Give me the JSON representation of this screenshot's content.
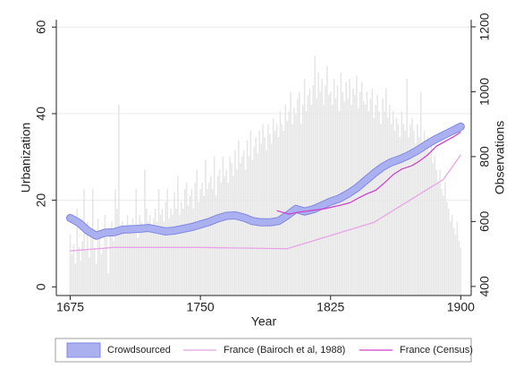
{
  "chart_data": {
    "type": "line",
    "xlabel": "Year",
    "ylabel": "Urbanization",
    "y2label": "Observations",
    "xlim": [
      1667,
      1906
    ],
    "xticks": [
      1675,
      1750,
      1825,
      1900
    ],
    "ylim": [
      -2,
      61.7
    ],
    "yticks": [
      0,
      20,
      40,
      60
    ],
    "y2lim": [
      372,
      1222
    ],
    "y2ticks": [
      400,
      600,
      800,
      1000,
      1200
    ],
    "grid": true,
    "legend": "bottom",
    "series": [
      {
        "type": "bar",
        "axis": "y2",
        "color": "#e6e6e6",
        "x": [
          1675,
          1676,
          1677,
          1678,
          1679,
          1680,
          1681,
          1682,
          1683,
          1684,
          1685,
          1686,
          1687,
          1688,
          1689,
          1690,
          1691,
          1692,
          1693,
          1694,
          1695,
          1696,
          1697,
          1698,
          1699,
          1700,
          1701,
          1702,
          1703,
          1704,
          1705,
          1706,
          1707,
          1708,
          1709,
          1710,
          1711,
          1712,
          1713,
          1714,
          1715,
          1716,
          1717,
          1718,
          1719,
          1720,
          1721,
          1722,
          1723,
          1724,
          1725,
          1726,
          1727,
          1728,
          1729,
          1730,
          1731,
          1732,
          1733,
          1734,
          1735,
          1736,
          1737,
          1738,
          1739,
          1740,
          1741,
          1742,
          1743,
          1744,
          1745,
          1746,
          1747,
          1748,
          1749,
          1750,
          1751,
          1752,
          1753,
          1754,
          1755,
          1756,
          1757,
          1758,
          1759,
          1760,
          1761,
          1762,
          1763,
          1764,
          1765,
          1766,
          1767,
          1768,
          1769,
          1770,
          1771,
          1772,
          1773,
          1774,
          1775,
          1776,
          1777,
          1778,
          1779,
          1780,
          1781,
          1782,
          1783,
          1784,
          1785,
          1786,
          1787,
          1788,
          1789,
          1790,
          1791,
          1792,
          1793,
          1794,
          1795,
          1796,
          1797,
          1798,
          1799,
          1800,
          1801,
          1802,
          1803,
          1804,
          1805,
          1806,
          1807,
          1808,
          1809,
          1810,
          1811,
          1812,
          1813,
          1814,
          1815,
          1816,
          1817,
          1818,
          1819,
          1820,
          1821,
          1822,
          1823,
          1824,
          1825,
          1826,
          1827,
          1828,
          1829,
          1830,
          1831,
          1832,
          1833,
          1834,
          1835,
          1836,
          1837,
          1838,
          1839,
          1840,
          1841,
          1842,
          1843,
          1844,
          1845,
          1846,
          1847,
          1848,
          1849,
          1850,
          1851,
          1852,
          1853,
          1854,
          1855,
          1856,
          1857,
          1858,
          1859,
          1860,
          1861,
          1862,
          1863,
          1864,
          1865,
          1866,
          1867,
          1868,
          1869,
          1870,
          1871,
          1872,
          1873,
          1874,
          1875,
          1876,
          1877,
          1878,
          1879,
          1880,
          1881,
          1882,
          1883,
          1884,
          1885,
          1886,
          1887,
          1888,
          1889,
          1890,
          1891,
          1892,
          1893,
          1894,
          1895,
          1896,
          1897,
          1898,
          1899,
          1900
        ],
        "values": [
          560,
          500,
          530,
          470,
          640,
          520,
          480,
          540,
          700,
          510,
          600,
          490,
          560,
          700,
          520,
          470,
          610,
          560,
          500,
          520,
          620,
          550,
          440,
          580,
          600,
          540,
          700,
          640,
          960,
          560,
          600,
          580,
          560,
          620,
          590,
          570,
          610,
          580,
          700,
          550,
          620,
          600,
          580,
          760,
          640,
          600,
          620,
          590,
          610,
          640,
          600,
          700,
          620,
          640,
          600,
          660,
          700,
          610,
          640,
          620,
          690,
          640,
          740,
          620,
          660,
          640,
          700,
          720,
          650,
          680,
          700,
          640,
          720,
          760,
          660,
          700,
          720,
          680,
          790,
          700,
          720,
          740,
          700,
          800,
          680,
          740,
          760,
          720,
          800,
          740,
          760,
          720,
          800,
          780,
          740,
          820,
          760,
          850,
          780,
          800,
          820,
          760,
          850,
          800,
          880,
          790,
          830,
          860,
          810,
          880,
          840,
          900,
          860,
          820,
          900,
          870,
          840,
          920,
          880,
          900,
          860,
          940,
          900,
          880,
          960,
          910,
          940,
          1000,
          900,
          950,
          930,
          980,
          1000,
          900,
          960,
          1040,
          940,
          990,
          1010,
          960,
          1020,
          1110,
          980,
          1060,
          1000,
          1040,
          960,
          1020,
          1080,
          990,
          1000,
          960,
          1040,
          980,
          1020,
          940,
          1060,
          1000,
          970,
          1030,
          980,
          1040,
          960,
          1010,
          990,
          1050,
          950,
          1000,
          1030,
          970,
          960,
          1000,
          940,
          980,
          1010,
          920,
          960,
          990,
          940,
          900,
          980,
          940,
          1010,
          920,
          960,
          900,
          940,
          880,
          920,
          900,
          860,
          940,
          900,
          880,
          1040,
          860,
          900,
          920,
          880,
          840,
          900,
          860,
          1000,
          840,
          880,
          820,
          860,
          800,
          840,
          780,
          800,
          760,
          720,
          760,
          700,
          680,
          720,
          660,
          640,
          600,
          620,
          580,
          560,
          600,
          540,
          520
        ]
      },
      {
        "type": "band",
        "name": "Crowdsourced",
        "color": "#aab0f0",
        "edge_color": "#8088e0",
        "x": [
          1675,
          1680,
          1685,
          1690,
          1695,
          1700,
          1705,
          1710,
          1715,
          1720,
          1725,
          1730,
          1735,
          1740,
          1745,
          1750,
          1755,
          1760,
          1765,
          1770,
          1775,
          1780,
          1785,
          1790,
          1795,
          1800,
          1805,
          1810,
          1815,
          1820,
          1825,
          1830,
          1835,
          1840,
          1845,
          1850,
          1855,
          1860,
          1865,
          1870,
          1875,
          1880,
          1885,
          1890,
          1895,
          1900
        ],
        "values": [
          15.9,
          14.8,
          13.0,
          11.8,
          12.5,
          12.6,
          13.2,
          13.3,
          13.4,
          13.6,
          13.2,
          12.8,
          13.0,
          13.4,
          13.8,
          14.4,
          15.0,
          15.8,
          16.4,
          16.5,
          16.0,
          15.2,
          14.9,
          14.9,
          15.2,
          16.5,
          18.0,
          17.4,
          17.9,
          18.8,
          19.7,
          20.4,
          21.5,
          22.8,
          24.5,
          26.2,
          27.7,
          28.8,
          29.5,
          30.4,
          31.5,
          32.8,
          34.0,
          35.0,
          36.0,
          37.0
        ]
      },
      {
        "type": "line",
        "name": "France (Bairoch et al, 1988)",
        "color": "#e8a4e8",
        "x": [
          1675,
          1700,
          1750,
          1800,
          1850,
          1890,
          1900
        ],
        "values": [
          8.3,
          9.1,
          9.1,
          8.8,
          14.9,
          24.8,
          30.5
        ]
      },
      {
        "type": "line",
        "name": "France (Census)",
        "color": "#cc44cc",
        "x": [
          1794,
          1801,
          1806,
          1821,
          1831,
          1836,
          1841,
          1846,
          1851,
          1856,
          1861,
          1866,
          1872,
          1876,
          1881,
          1886,
          1891,
          1896,
          1900
        ],
        "values": [
          17.6,
          16.8,
          17.2,
          18.0,
          18.9,
          19.4,
          20.5,
          21.5,
          22.3,
          24.0,
          25.9,
          27.2,
          28.0,
          29.0,
          30.5,
          32.5,
          33.6,
          34.7,
          35.8
        ]
      }
    ]
  }
}
